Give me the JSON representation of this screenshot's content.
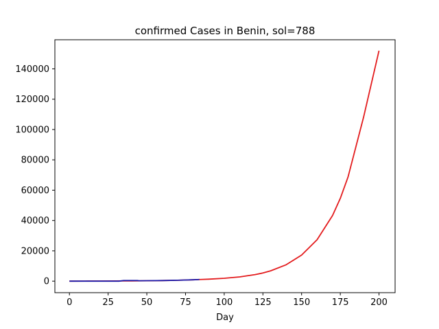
{
  "chart_data": {
    "type": "line",
    "title": "confirmed Cases in Benin, sol=788",
    "xlabel": "Day",
    "ylabel": "",
    "xlim": [
      -9.4,
      210.4
    ],
    "ylim": [
      -7600,
      159200
    ],
    "xticks": [
      0,
      25,
      50,
      75,
      100,
      125,
      150,
      175,
      200
    ],
    "yticks": [
      0,
      20000,
      40000,
      60000,
      80000,
      100000,
      120000,
      140000
    ],
    "grid": false,
    "legend": "none",
    "series": [
      {
        "color": "#e31a1c",
        "x": [
          0,
          10,
          20,
          30,
          40,
          50,
          60,
          70,
          80,
          85,
          90,
          100,
          110,
          120,
          125,
          130,
          140,
          150,
          160,
          170,
          175,
          180,
          190,
          200
        ],
        "values": [
          0,
          40,
          80,
          130,
          180,
          250,
          400,
          600,
          900,
          1100,
          1300,
          1900,
          2800,
          4300,
          5400,
          6800,
          10800,
          17200,
          27300,
          43300,
          54600,
          68700,
          108000,
          152000
        ]
      },
      {
        "color": "#1a1aaa",
        "x": [
          0,
          10,
          20,
          32,
          35,
          40,
          44,
          45,
          50,
          60,
          70,
          80,
          84
        ],
        "values": [
          0,
          0,
          0,
          0,
          400,
          400,
          400,
          250,
          300,
          400,
          600,
          900,
          1100
        ]
      }
    ]
  }
}
